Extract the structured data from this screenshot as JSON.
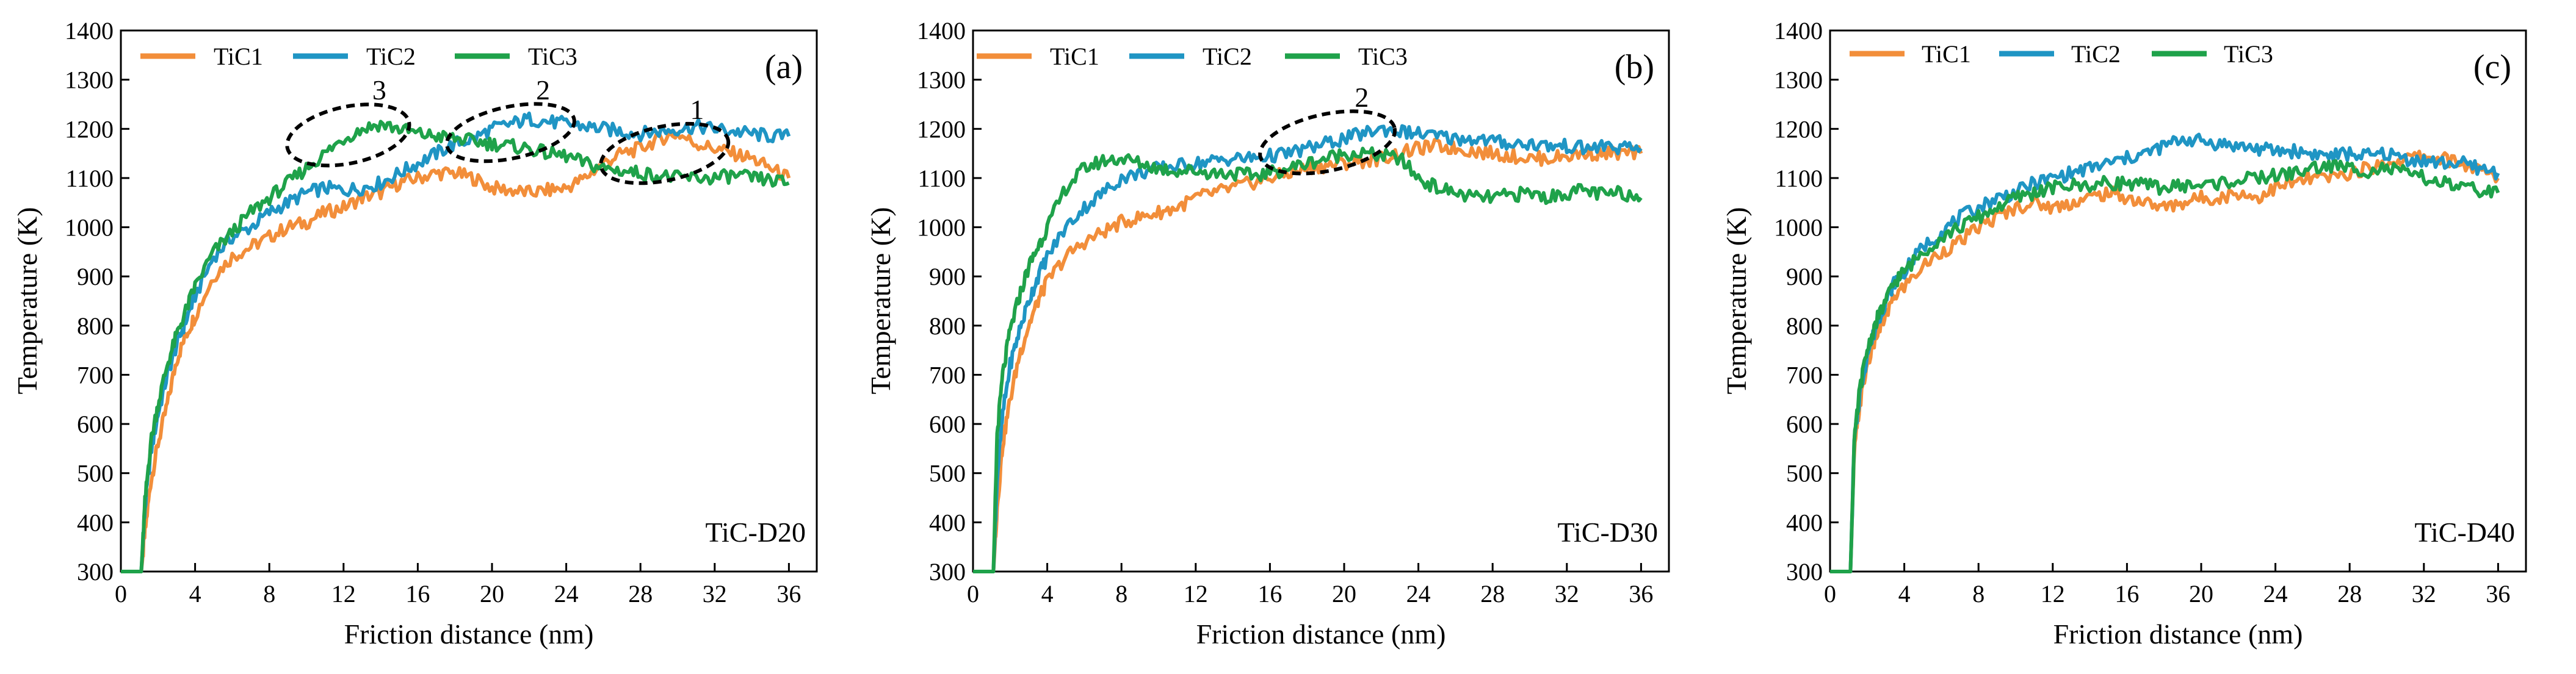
{
  "figure": {
    "series_names": [
      "TiC1",
      "TiC2",
      "TiC3"
    ],
    "colors": {
      "TiC1": "#F28E3A",
      "TiC2": "#1F95C4",
      "TiC3": "#1FA24A",
      "axis": "#000000",
      "ellipse": "#000000"
    }
  },
  "chart_data": [
    {
      "type": "line",
      "panel_tag": "(a)",
      "sample_label": "TiC-D20",
      "xlabel": "Friction distance (nm)",
      "ylabel": "Temperature (K)",
      "xlim": [
        0,
        37.5
      ],
      "ylim": [
        300,
        1400
      ],
      "xticks": [
        0,
        4,
        8,
        12,
        16,
        20,
        24,
        28,
        32,
        36
      ],
      "yticks": [
        300,
        400,
        500,
        600,
        700,
        800,
        900,
        1000,
        1100,
        1200,
        1300,
        1400
      ],
      "legend": [
        "TiC1",
        "TiC2",
        "TiC3"
      ],
      "series": [
        {
          "name": "TiC1",
          "x": [
            0,
            1.1,
            1.3,
            1.6,
            2,
            2.5,
            3,
            3.5,
            4,
            5,
            6,
            7,
            8,
            9,
            10,
            11,
            12,
            13,
            14,
            15,
            16,
            17,
            18,
            19,
            20,
            21,
            22,
            23,
            24,
            25,
            26,
            27,
            28,
            29,
            30,
            31,
            32,
            33,
            34,
            35,
            36
          ],
          "values": [
            300,
            300,
            380,
            480,
            560,
            640,
            730,
            780,
            820,
            900,
            940,
            960,
            980,
            1000,
            1010,
            1030,
            1040,
            1060,
            1070,
            1090,
            1100,
            1110,
            1110,
            1100,
            1080,
            1075,
            1070,
            1075,
            1080,
            1100,
            1130,
            1150,
            1160,
            1180,
            1190,
            1170,
            1160,
            1150,
            1140,
            1120,
            1100
          ]
        },
        {
          "name": "TiC2",
          "x": [
            0,
            1.1,
            1.3,
            1.6,
            2,
            2.5,
            3,
            3.5,
            4,
            5,
            6,
            7,
            8,
            9,
            10,
            11,
            12,
            13,
            14,
            15,
            16,
            17,
            18,
            19,
            20,
            21,
            22,
            23,
            24,
            25,
            26,
            27,
            28,
            29,
            30,
            31,
            32,
            33,
            34,
            35,
            36
          ],
          "values": [
            300,
            300,
            430,
            540,
            620,
            700,
            760,
            810,
            860,
            940,
            980,
            1000,
            1030,
            1050,
            1070,
            1080,
            1075,
            1080,
            1090,
            1110,
            1130,
            1150,
            1170,
            1180,
            1200,
            1210,
            1220,
            1215,
            1210,
            1205,
            1200,
            1195,
            1190,
            1195,
            1200,
            1205,
            1200,
            1195,
            1190,
            1185,
            1185
          ]
        },
        {
          "name": "TiC3",
          "x": [
            0,
            1.1,
            1.3,
            1.6,
            2,
            2.5,
            3,
            3.5,
            4,
            5,
            6,
            7,
            8,
            9,
            10,
            11,
            12,
            13,
            14,
            15,
            16,
            17,
            18,
            19,
            20,
            21,
            22,
            23,
            24,
            25,
            26,
            27,
            28,
            29,
            30,
            31,
            32,
            33,
            34,
            35,
            36
          ],
          "values": [
            300,
            300,
            440,
            560,
            640,
            720,
            780,
            830,
            880,
            950,
            990,
            1030,
            1060,
            1090,
            1120,
            1150,
            1180,
            1200,
            1210,
            1200,
            1190,
            1185,
            1180,
            1175,
            1170,
            1165,
            1160,
            1150,
            1145,
            1130,
            1120,
            1115,
            1110,
            1105,
            1100,
            1100,
            1100,
            1105,
            1100,
            1095,
            1090
          ]
        }
      ],
      "annotations": [
        {
          "label": "1",
          "x_range": [
            25.8,
            32.8
          ],
          "y_range": [
            1095,
            1205
          ]
        },
        {
          "label": "2",
          "x_range": [
            17.5,
            24.5
          ],
          "y_range": [
            1140,
            1245
          ]
        },
        {
          "label": "3",
          "x_range": [
            8.9,
            15.6
          ],
          "y_range": [
            1130,
            1245
          ]
        }
      ]
    },
    {
      "type": "line",
      "panel_tag": "(b)",
      "sample_label": "TiC-D30",
      "xlabel": "Friction distance (nm)",
      "ylabel": "Temperature (K)",
      "xlim": [
        0,
        37.5
      ],
      "ylim": [
        300,
        1400
      ],
      "xticks": [
        0,
        4,
        8,
        12,
        16,
        20,
        24,
        28,
        32,
        36
      ],
      "yticks": [
        300,
        400,
        500,
        600,
        700,
        800,
        900,
        1000,
        1100,
        1200,
        1300,
        1400
      ],
      "legend": [
        "TiC1",
        "TiC2",
        "TiC3"
      ],
      "series": [
        {
          "name": "TiC1",
          "x": [
            0,
            1.1,
            1.3,
            1.6,
            2,
            2.5,
            3,
            3.5,
            4,
            5,
            6,
            7,
            8,
            9,
            10,
            11,
            12,
            13,
            14,
            15,
            16,
            17,
            18,
            19,
            20,
            21,
            22,
            23,
            24,
            25,
            26,
            27,
            28,
            29,
            30,
            31,
            32,
            33,
            34,
            35,
            36
          ],
          "values": [
            300,
            300,
            430,
            560,
            650,
            740,
            800,
            850,
            890,
            940,
            970,
            990,
            1010,
            1020,
            1030,
            1040,
            1060,
            1070,
            1080,
            1090,
            1100,
            1110,
            1120,
            1125,
            1130,
            1135,
            1140,
            1150,
            1160,
            1165,
            1160,
            1155,
            1150,
            1145,
            1140,
            1140,
            1145,
            1150,
            1150,
            1150,
            1150
          ]
        },
        {
          "name": "TiC2",
          "x": [
            0,
            1.1,
            1.3,
            1.6,
            2,
            2.5,
            3,
            3.5,
            4,
            5,
            6,
            7,
            8,
            9,
            10,
            11,
            12,
            13,
            14,
            15,
            16,
            17,
            18,
            19,
            20,
            21,
            22,
            23,
            24,
            25,
            26,
            27,
            28,
            29,
            30,
            31,
            32,
            33,
            34,
            35,
            36
          ],
          "values": [
            300,
            300,
            490,
            620,
            720,
            790,
            850,
            900,
            940,
            1000,
            1040,
            1070,
            1100,
            1110,
            1120,
            1125,
            1130,
            1135,
            1140,
            1140,
            1145,
            1150,
            1160,
            1170,
            1180,
            1190,
            1200,
            1195,
            1190,
            1185,
            1180,
            1180,
            1175,
            1170,
            1170,
            1165,
            1165,
            1160,
            1165,
            1160,
            1160
          ]
        },
        {
          "name": "TiC3",
          "x": [
            0,
            1.1,
            1.3,
            1.6,
            2,
            2.5,
            3,
            3.5,
            4,
            5,
            6,
            7,
            8,
            9,
            10,
            11,
            12,
            13,
            14,
            15,
            16,
            17,
            18,
            19,
            20,
            21,
            22,
            23,
            24,
            25,
            26,
            27,
            28,
            29,
            30,
            31,
            32,
            33,
            34,
            35,
            36
          ],
          "values": [
            300,
            300,
            580,
            700,
            790,
            860,
            920,
            960,
            1000,
            1080,
            1120,
            1135,
            1140,
            1130,
            1120,
            1115,
            1115,
            1110,
            1110,
            1105,
            1110,
            1120,
            1130,
            1140,
            1150,
            1150,
            1145,
            1140,
            1100,
            1080,
            1070,
            1060,
            1060,
            1065,
            1070,
            1060,
            1070,
            1075,
            1065,
            1070,
            1060
          ]
        }
      ],
      "annotations": [
        {
          "label": "2",
          "x_range": [
            15.4,
            22.8
          ],
          "y_range": [
            1115,
            1230
          ]
        }
      ]
    },
    {
      "type": "line",
      "panel_tag": "(c)",
      "sample_label": "TiC-D40",
      "xlabel": "Friction distance (nm)",
      "ylabel": "Temperature (K)",
      "xlim": [
        0,
        37.5
      ],
      "ylim": [
        300,
        1400
      ],
      "xticks": [
        0,
        4,
        8,
        12,
        16,
        20,
        24,
        28,
        32,
        36
      ],
      "yticks": [
        300,
        400,
        500,
        600,
        700,
        800,
        900,
        1000,
        1100,
        1200,
        1300,
        1400
      ],
      "legend": [
        "TiC1",
        "TiC2",
        "TiC3"
      ],
      "series": [
        {
          "name": "TiC1",
          "x": [
            0,
            1.1,
            1.3,
            1.6,
            2,
            2.5,
            3,
            3.5,
            4,
            5,
            6,
            7,
            8,
            9,
            10,
            11,
            12,
            13,
            14,
            15,
            16,
            17,
            18,
            19,
            20,
            21,
            22,
            23,
            24,
            25,
            26,
            27,
            28,
            29,
            30,
            31,
            32,
            33,
            34,
            35,
            36
          ],
          "values": [
            300,
            300,
            540,
            640,
            720,
            780,
            820,
            860,
            880,
            920,
            950,
            970,
            1000,
            1020,
            1040,
            1050,
            1040,
            1050,
            1060,
            1070,
            1060,
            1050,
            1040,
            1050,
            1060,
            1060,
            1070,
            1060,
            1080,
            1090,
            1100,
            1100,
            1110,
            1120,
            1130,
            1140,
            1145,
            1140,
            1130,
            1115,
            1100
          ]
        },
        {
          "name": "TiC2",
          "x": [
            0,
            1.1,
            1.3,
            1.6,
            2,
            2.5,
            3,
            3.5,
            4,
            5,
            6,
            7,
            8,
            9,
            10,
            11,
            12,
            13,
            14,
            15,
            16,
            17,
            18,
            19,
            20,
            21,
            22,
            23,
            24,
            25,
            26,
            27,
            28,
            29,
            30,
            31,
            32,
            33,
            34,
            35,
            36
          ],
          "values": [
            300,
            300,
            560,
            660,
            740,
            800,
            850,
            890,
            910,
            960,
            990,
            1020,
            1040,
            1060,
            1070,
            1090,
            1100,
            1110,
            1120,
            1130,
            1140,
            1150,
            1165,
            1180,
            1175,
            1170,
            1165,
            1160,
            1155,
            1155,
            1150,
            1145,
            1150,
            1145,
            1150,
            1140,
            1135,
            1130,
            1130,
            1120,
            1110
          ]
        },
        {
          "name": "TiC3",
          "x": [
            0,
            1.1,
            1.3,
            1.6,
            2,
            2.5,
            3,
            3.5,
            4,
            5,
            6,
            7,
            8,
            9,
            10,
            11,
            12,
            13,
            14,
            15,
            16,
            17,
            18,
            19,
            20,
            21,
            22,
            23,
            24,
            25,
            26,
            27,
            28,
            29,
            30,
            31,
            32,
            33,
            34,
            35,
            36
          ],
          "values": [
            300,
            300,
            560,
            670,
            750,
            810,
            850,
            890,
            910,
            950,
            980,
            1000,
            1020,
            1040,
            1060,
            1070,
            1080,
            1085,
            1085,
            1090,
            1090,
            1085,
            1080,
            1085,
            1085,
            1090,
            1095,
            1100,
            1105,
            1110,
            1120,
            1125,
            1120,
            1115,
            1120,
            1110,
            1100,
            1090,
            1080,
            1075,
            1070
          ]
        }
      ],
      "annotations": []
    }
  ]
}
